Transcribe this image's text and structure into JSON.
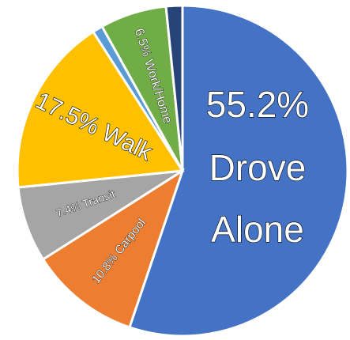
{
  "chart_data": {
    "type": "pie",
    "title": "",
    "slices": [
      {
        "label": "Drove Alone",
        "value": 55.2,
        "color": "#4472C4",
        "label_lines": [
          "55.2%",
          "Drove",
          "Alone"
        ]
      },
      {
        "label": "Carpool",
        "value": 10.8,
        "color": "#ED7D31",
        "label_lines": [
          "10.8% Carpool"
        ]
      },
      {
        "label": "Transit",
        "value": 7.4,
        "color": "#A5A5A5",
        "label_lines": [
          "7.4% Transit"
        ]
      },
      {
        "label": "Walk",
        "value": 17.5,
        "color": "#FFC000",
        "label_lines": [
          "17.5% Walk"
        ]
      },
      {
        "label": "",
        "value": 1.0,
        "color": "#5B9BD5",
        "label_lines": []
      },
      {
        "label": "Work/Home",
        "value": 6.5,
        "color": "#70AD47",
        "label_lines": [
          "6.5% Work/Home"
        ]
      },
      {
        "label": "",
        "value": 1.6,
        "color": "#264478",
        "label_lines": []
      }
    ],
    "start_angle": "12 o'clock",
    "direction": "clockwise",
    "legend": "none"
  }
}
